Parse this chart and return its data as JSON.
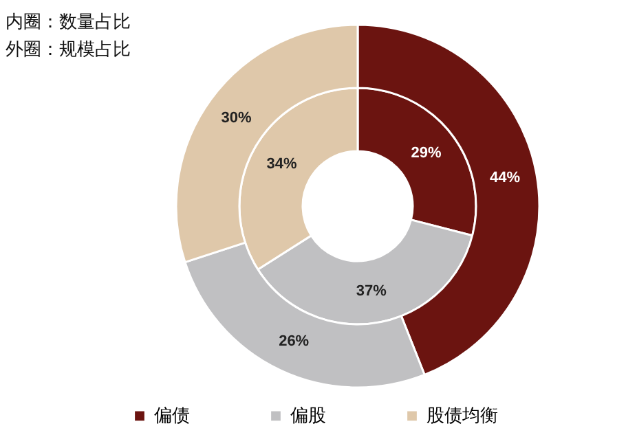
{
  "chart_data": {
    "type": "donut",
    "categories": [
      "偏债",
      "偏股",
      "股债均衡"
    ],
    "colors": [
      "#6b1410",
      "#c0c0c2",
      "#dfc8aa"
    ],
    "series": [
      {
        "values": [
          29,
          37,
          34
        ],
        "value_labels": [
          "29%",
          "37%",
          "34%"
        ]
      },
      {
        "values": [
          44,
          26,
          30
        ],
        "value_labels": [
          "44%",
          "26%",
          "30%"
        ]
      }
    ],
    "data_labels": true,
    "legend": "bottom",
    "annotations": [
      "内圈：数量占比",
      "外圈：规模占比"
    ]
  }
}
